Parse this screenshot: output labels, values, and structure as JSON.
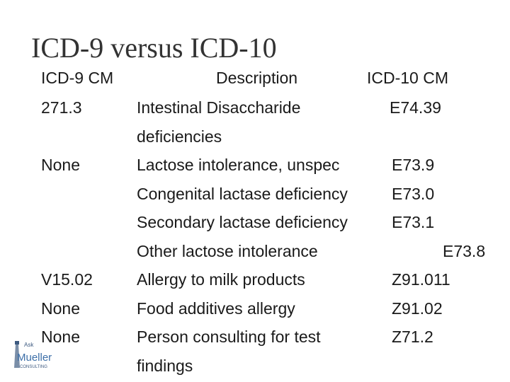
{
  "title": "ICD-9 versus ICD-10",
  "header": {
    "icd9": "ICD-9 CM",
    "description": "Description",
    "icd10": "ICD-10 CM"
  },
  "lines": [
    {
      "icd9": "271.3",
      "description": "Intestinal Disaccharide",
      "icd10": "E74.39"
    },
    {
      "description": "deficiencies"
    },
    {
      "icd9": "None",
      "description": "Lactose intolerance, unspec",
      "icd10": "E73.9"
    },
    {
      "description": "Congenital lactase deficiency",
      "icd10": "E73.0"
    },
    {
      "description": "Secondary lactase deficiency",
      "icd10": "E73.1"
    },
    {
      "description": "Other lactose intolerance",
      "icd10": "E73.8"
    },
    {
      "icd9": "V15.02",
      "description": "Allergy to milk products",
      "icd10": "Z91.011"
    },
    {
      "icd9": "None",
      "description": "Food additives allergy",
      "icd10": "Z91.02"
    },
    {
      "icd9": "None",
      "description": "Person consulting for test",
      "icd10": "Z71.2"
    },
    {
      "description": "findings"
    }
  ],
  "logo": {
    "top": "Ask",
    "name": "Mueller",
    "sub": "CONSULTING"
  }
}
